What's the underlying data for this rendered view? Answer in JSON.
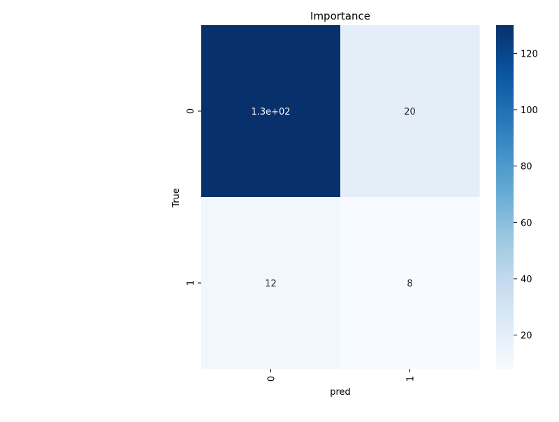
{
  "chart_data": {
    "type": "heatmap",
    "title": "Importance",
    "xlabel": "pred",
    "ylabel": "True",
    "x_categories": [
      "0",
      "1"
    ],
    "y_categories": [
      "0",
      "1"
    ],
    "values": [
      [
        130,
        20
      ],
      [
        12,
        8
      ]
    ],
    "annotations": [
      [
        "1.3e+02",
        "20"
      ],
      [
        "12",
        "8"
      ]
    ],
    "colormap": "Blues",
    "colorbar": {
      "range": [
        8,
        130
      ],
      "ticks": [
        20,
        40,
        60,
        80,
        100,
        120
      ],
      "tick_labels": [
        "20",
        "40",
        "60",
        "80",
        "100",
        "120"
      ]
    },
    "colors": {
      "low": "#f7fbff",
      "high": "#08306b",
      "text_dark": "#262626",
      "text_light": "#ffffff"
    }
  }
}
